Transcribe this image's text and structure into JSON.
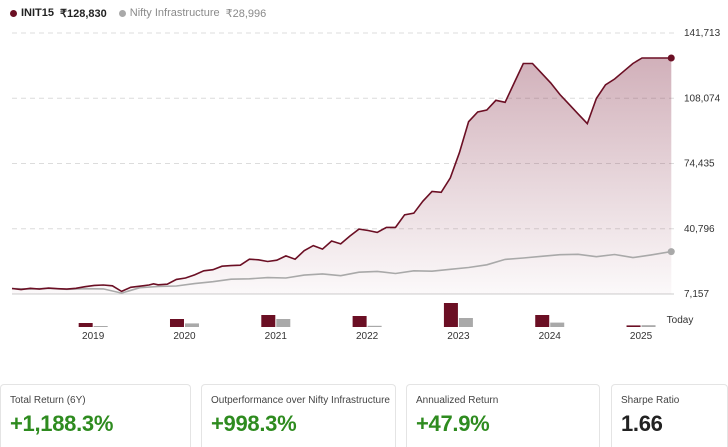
{
  "legend": {
    "primary": {
      "name": "INIT15",
      "value": "₹128,830",
      "color": "#6b0f24"
    },
    "secondary": {
      "name": "Nifty Infrastructure",
      "value": "₹28,996",
      "color": "#a9a9a9"
    }
  },
  "chart_data": {
    "type": "area",
    "y_axis": {
      "position": "right",
      "ticks": [
        141713,
        108074,
        74435,
        40796,
        7157
      ],
      "tick_labels": [
        "141,713",
        "108,074",
        "74,435",
        "40,796",
        "7,157"
      ],
      "range": [
        7157,
        141713
      ],
      "grid": "dashed"
    },
    "x_axis": {
      "range": [
        2018.6,
        2025.85
      ],
      "ticks": [
        2019,
        2020,
        2021,
        2022,
        2023,
        2024,
        2025
      ],
      "tick_labels": [
        "2019",
        "2020",
        "2021",
        "2022",
        "2023",
        "2024",
        "2025"
      ],
      "end_label": "Today"
    },
    "series": [
      {
        "name": "INIT15",
        "color": "#6b0f24",
        "fill": "gradient",
        "x": [
          2018.6,
          2018.7,
          2018.8,
          2018.9,
          2019.0,
          2019.1,
          2019.2,
          2019.3,
          2019.4,
          2019.5,
          2019.6,
          2019.7,
          2019.8,
          2019.9,
          2020.0,
          2020.1,
          2020.15,
          2020.2,
          2020.3,
          2020.4,
          2020.5,
          2020.6,
          2020.7,
          2020.8,
          2020.9,
          2021.0,
          2021.1,
          2021.2,
          2021.3,
          2021.4,
          2021.5,
          2021.6,
          2021.7,
          2021.8,
          2021.9,
          2022.0,
          2022.1,
          2022.2,
          2022.3,
          2022.4,
          2022.5,
          2022.6,
          2022.7,
          2022.8,
          2022.9,
          2023.0,
          2023.1,
          2023.2,
          2023.3,
          2023.4,
          2023.5,
          2023.6,
          2023.7,
          2023.8,
          2023.9,
          2024.0,
          2024.1,
          2024.2,
          2024.3,
          2024.4,
          2024.5,
          2024.6,
          2024.7,
          2024.8,
          2024.9,
          2025.0,
          2025.1,
          2025.2,
          2025.3,
          2025.4,
          2025.5,
          2025.6,
          2025.7,
          2025.82
        ],
        "values": [
          10000,
          9400,
          10100,
          9700,
          10200,
          9900,
          9700,
          10100,
          10900,
          11600,
          11800,
          11400,
          8500,
          10600,
          11200,
          11800,
          12400,
          11900,
          12200,
          14700,
          15400,
          17000,
          19100,
          19700,
          21500,
          21800,
          22000,
          25100,
          24800,
          23900,
          24600,
          26800,
          25100,
          29500,
          32100,
          30300,
          34500,
          33000,
          37000,
          40600,
          39900,
          38900,
          41500,
          41500,
          48000,
          48800,
          55000,
          60000,
          59600,
          67000,
          80000,
          96000,
          101000,
          102000,
          107000,
          106000,
          116000,
          126000,
          126000,
          121000,
          116000,
          110000,
          105000,
          100000,
          95000,
          108000,
          115000,
          118000,
          122000,
          126000,
          128830,
          128830,
          128830,
          128830
        ]
      },
      {
        "name": "Nifty Infrastructure",
        "color": "#a9a9a9",
        "fill": "none",
        "x": [
          2018.6,
          2018.8,
          2019.0,
          2019.2,
          2019.4,
          2019.6,
          2019.8,
          2020.0,
          2020.2,
          2020.4,
          2020.6,
          2020.8,
          2021.0,
          2021.2,
          2021.4,
          2021.6,
          2021.8,
          2022.0,
          2022.2,
          2022.4,
          2022.6,
          2022.8,
          2023.0,
          2023.2,
          2023.4,
          2023.6,
          2023.8,
          2024.0,
          2024.2,
          2024.4,
          2024.6,
          2024.8,
          2025.0,
          2025.2,
          2025.4,
          2025.6,
          2025.82
        ],
        "values": [
          10000,
          9700,
          10100,
          9600,
          9900,
          9800,
          7600,
          10400,
          11000,
          11300,
          12500,
          13500,
          14800,
          15000,
          15600,
          15400,
          16900,
          17500,
          16600,
          18400,
          18800,
          17700,
          19100,
          18900,
          19900,
          20800,
          22200,
          25000,
          25700,
          26600,
          27400,
          27600,
          26400,
          27500,
          25900,
          27300,
          28996
        ]
      }
    ],
    "yearly_returns": {
      "years": [
        2019,
        2020,
        2021,
        2022,
        2023,
        2024,
        2025
      ],
      "init15": [
        2.0,
        4.0,
        6.0,
        5.5,
        12.0,
        6.0,
        0.8
      ],
      "nifty": [
        0.5,
        1.8,
        4.0,
        0.6,
        4.5,
        2.2,
        0.9
      ]
    }
  },
  "stats": [
    {
      "label": "Total Return (6Y)",
      "value": "+1,188.3%",
      "tone": "positive"
    },
    {
      "label": "Outperformance over Nifty Infrastructure",
      "value": "+998.3%",
      "tone": "positive"
    },
    {
      "label": "Annualized Return",
      "value": "+47.9%",
      "tone": "positive"
    },
    {
      "label": "Sharpe Ratio",
      "value": "1.66",
      "tone": "neutral"
    }
  ]
}
